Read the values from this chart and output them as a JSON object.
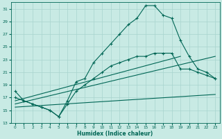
{
  "xlabel": "Humidex (Indice chaleur)",
  "bg_color": "#c8eae4",
  "grid_color": "#a8d4ce",
  "line_color": "#006655",
  "x_ticks": [
    0,
    1,
    2,
    3,
    4,
    5,
    6,
    7,
    8,
    9,
    10,
    11,
    12,
    13,
    14,
    15,
    16,
    17,
    18,
    19,
    20,
    21,
    22,
    23
  ],
  "y_ticks": [
    13,
    15,
    17,
    19,
    21,
    23,
    25,
    27,
    29,
    31
  ],
  "ylim": [
    13,
    32
  ],
  "xlim": [
    -0.5,
    23.5
  ],
  "series1": [
    18.0,
    16.5,
    16.0,
    15.5,
    15.0,
    14.0,
    16.5,
    19.5,
    20.0,
    22.5,
    24.0,
    25.5,
    27.0,
    28.5,
    29.5,
    31.5,
    31.5,
    30.0,
    29.5,
    26.0,
    23.5,
    21.5,
    21.0,
    20.0
  ],
  "series2": [
    17.0,
    16.5,
    16.0,
    15.5,
    15.0,
    14.0,
    16.0,
    18.0,
    19.0,
    20.0,
    21.0,
    22.0,
    22.5,
    23.0,
    23.5,
    23.5,
    24.0,
    24.0,
    24.0,
    21.5,
    21.5,
    21.0,
    20.5,
    20.0
  ],
  "series3_x": [
    0,
    19
  ],
  "series3_y": [
    16.5,
    23.5
  ],
  "series4_x": [
    0,
    23
  ],
  "series4_y": [
    16.0,
    23.5
  ],
  "series5_x": [
    0,
    23
  ],
  "series5_y": [
    15.5,
    17.5
  ]
}
